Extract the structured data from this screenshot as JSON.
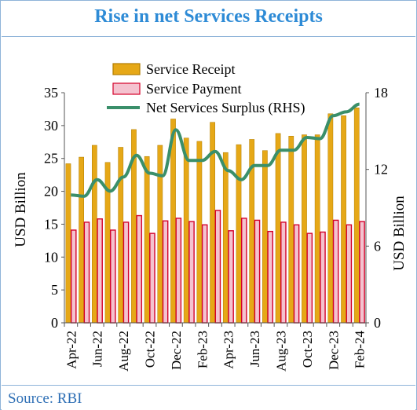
{
  "title": "Rise in net Services Receipts",
  "source": "Source: RBI",
  "colors": {
    "receipt": "#e6a817",
    "receipt_edge": "#b07d00",
    "payment": "#f4c2cf",
    "payment_edge": "#d4002a",
    "surplus": "#3a8f6a",
    "title": "#2e8bd6"
  },
  "chart_data": {
    "type": "bar",
    "categories": [
      "Apr-22",
      "May-22",
      "Jun-22",
      "Jul-22",
      "Aug-22",
      "Sep-22",
      "Oct-22",
      "Nov-22",
      "Dec-22",
      "Jan-23",
      "Feb-23",
      "Mar-23",
      "Apr-23",
      "May-23",
      "Jun-23",
      "Jul-23",
      "Aug-23",
      "Sep-23",
      "Oct-23",
      "Nov-23",
      "Dec-23",
      "Jan-24",
      "Feb-24"
    ],
    "x_tick_labels": [
      "Apr-22",
      "Jun-22",
      "Aug-22",
      "Oct-22",
      "Dec-22",
      "Feb-23",
      "Apr-23",
      "Jun-23",
      "Aug-23",
      "Oct-23",
      "Dec-23",
      "Feb-24"
    ],
    "series": [
      {
        "name": "Service Receipt",
        "axis": "left",
        "kind": "bar",
        "values": [
          24.2,
          25.2,
          27.0,
          24.4,
          26.7,
          29.4,
          25.3,
          27.0,
          31.0,
          28.1,
          27.6,
          30.5,
          25.9,
          27.1,
          27.9,
          26.2,
          28.8,
          28.4,
          28.6,
          28.6,
          31.8,
          31.5,
          32.7
        ]
      },
      {
        "name": "Service Payment",
        "axis": "left",
        "kind": "bar",
        "values": [
          14.1,
          15.3,
          15.8,
          14.1,
          15.3,
          16.3,
          13.6,
          15.5,
          15.9,
          15.4,
          14.9,
          17.1,
          14.0,
          15.9,
          15.6,
          13.9,
          15.3,
          14.9,
          13.6,
          13.8,
          15.6,
          14.9,
          15.4
        ]
      },
      {
        "name": "Net Services Surplus (RHS)",
        "axis": "right",
        "kind": "line",
        "values": [
          10.0,
          9.9,
          11.2,
          10.3,
          11.4,
          13.1,
          11.7,
          11.5,
          15.1,
          12.7,
          12.7,
          13.4,
          11.9,
          11.2,
          12.3,
          12.3,
          13.5,
          13.5,
          14.5,
          14.4,
          16.2,
          16.5,
          17.1
        ]
      }
    ],
    "ylabel": "USD Billion",
    "ylabel_right": "USD Billion",
    "ylim": [
      0,
      35
    ],
    "yticks": [
      0,
      5,
      10,
      15,
      20,
      25,
      30,
      35
    ],
    "ylim_right": [
      0,
      18
    ],
    "yticks_right": [
      0,
      6,
      12,
      18
    ],
    "legend_position": "top-center",
    "grid": false
  }
}
